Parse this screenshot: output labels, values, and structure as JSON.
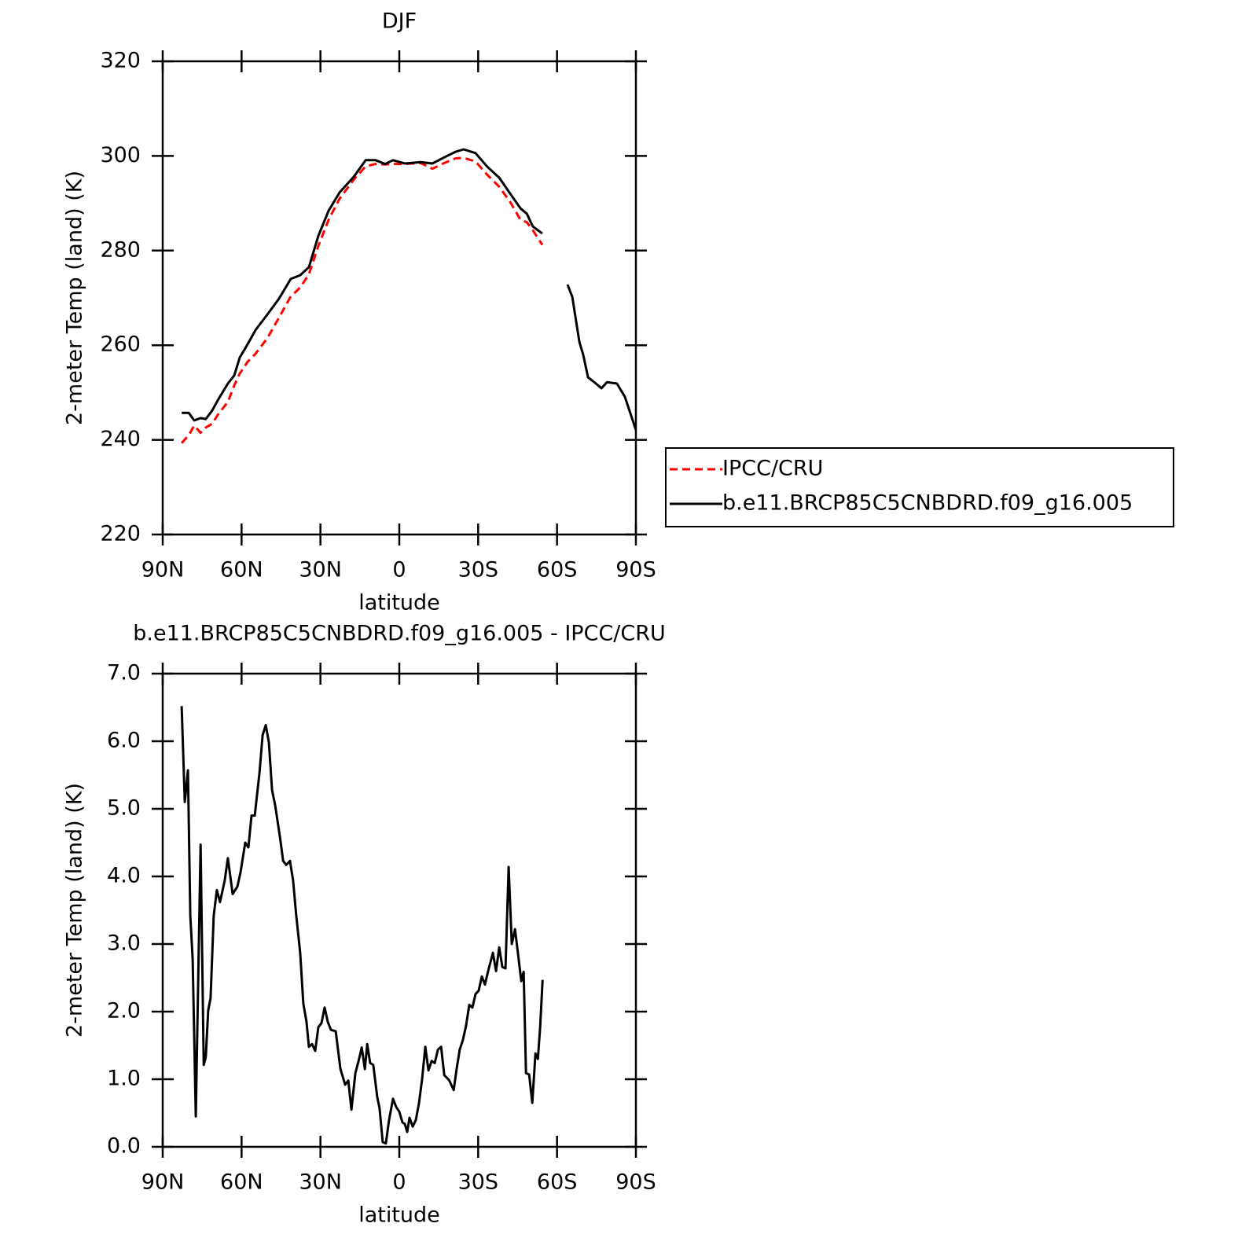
{
  "chart_data": [
    {
      "type": "line",
      "title": "DJF",
      "xlabel": "latitude",
      "ylabel": "2-meter Temp (land) (K)",
      "x": [
        82.8,
        80.1,
        78.0,
        75.6,
        73.6,
        71.2,
        68.8,
        65.2,
        62.8,
        60.7,
        57.7,
        54.7,
        50.2,
        45.8,
        41.3,
        37.7,
        34.4,
        30.8,
        26.9,
        22.7,
        17.3,
        12.8,
        9.0,
        5.4,
        2.4,
        -2.1,
        -8.1,
        -12.6,
        -17.1,
        -21.5,
        -24.5,
        -29.0,
        -33.5,
        -38.0,
        -42.5,
        -46.1,
        -48.5,
        -50.8,
        -54.4,
        -59.0,
        -64.0,
        -65.8,
        -68.5,
        -70.0,
        -71.8,
        -74.8,
        -76.9,
        -79.0,
        -82.8,
        -85.8,
        -90.0
      ],
      "series": [
        {
          "name": "IPCC/CRU",
          "color": "#ff0000",
          "dashed": true,
          "values": [
            239.3,
            241.0,
            243.0,
            241.5,
            242.6,
            243.4,
            245.5,
            248.0,
            251.5,
            254.0,
            256.5,
            258.2,
            261.5,
            265.8,
            270.3,
            272.2,
            275.0,
            281.0,
            286.5,
            291.0,
            295.0,
            297.8,
            298.3,
            298.2,
            298.3,
            298.3,
            298.5,
            297.3,
            298.5,
            299.5,
            299.6,
            298.8,
            296.0,
            293.5,
            290.0,
            286.5,
            286.0,
            284.3,
            281.2,
            null,
            null,
            null,
            null,
            null,
            null,
            null,
            null,
            null,
            null,
            null,
            null
          ]
        },
        {
          "name": "b.e11.BRCP85C5CNBDRD.f09_g16.005",
          "color": "#000000",
          "dashed": false,
          "values": [
            245.7,
            245.7,
            244.1,
            244.6,
            244.4,
            246.2,
            248.6,
            251.9,
            253.6,
            257.4,
            260.2,
            263.2,
            266.5,
            269.8,
            274.0,
            274.8,
            276.5,
            283.1,
            288.4,
            292.3,
            295.6,
            299.1,
            299.1,
            298.3,
            299.1,
            298.4,
            298.7,
            298.4,
            299.7,
            300.9,
            301.4,
            300.6,
            297.7,
            295.4,
            291.8,
            288.9,
            287.8,
            285.1,
            283.6,
            null,
            272.8,
            270.2,
            260.7,
            257.9,
            253.2,
            251.9,
            250.9,
            252.2,
            251.9,
            249.1,
            242.1
          ]
        }
      ],
      "xlim": [
        90,
        -90
      ],
      "xticks": [
        {
          "value": 90,
          "label": "90N"
        },
        {
          "value": 60,
          "label": "60N"
        },
        {
          "value": 30,
          "label": "30N"
        },
        0,
        {
          "value": -30,
          "label": "30S"
        },
        {
          "value": -60,
          "label": "60S"
        },
        {
          "value": -90,
          "label": "90S"
        }
      ],
      "ylim": [
        220,
        320
      ],
      "yticks": [
        220,
        240,
        260,
        280,
        300,
        320
      ],
      "legend": "right"
    },
    {
      "type": "line",
      "title": "b.e11.BRCP85C5CNBDRD.f09_g16.005 - IPCC/CRU",
      "xlabel": "latitude",
      "ylabel": "2-meter Temp (land) (K)",
      "x": [
        82.8,
        81.6,
        80.4,
        79.5,
        78.6,
        77.4,
        75.6,
        74.4,
        73.6,
        72.7,
        71.8,
        70.6,
        69.4,
        68.2,
        66.4,
        65.2,
        63.4,
        61.6,
        60.4,
        58.6,
        57.4,
        56.2,
        55.0,
        53.2,
        52.0,
        50.8,
        49.6,
        48.4,
        47.2,
        45.4,
        44.2,
        43.0,
        41.6,
        40.4,
        39.2,
        37.7,
        36.5,
        35.3,
        34.4,
        33.2,
        32.0,
        30.8,
        29.6,
        28.4,
        27.2,
        26.0,
        24.2,
        22.4,
        20.6,
        19.4,
        18.2,
        16.7,
        15.5,
        14.3,
        13.1,
        12.2,
        11.1,
        9.9,
        8.4,
        7.5,
        6.3,
        5.1,
        3.9,
        2.4,
        1.2,
        0,
        -1.2,
        -2.1,
        -3.0,
        -3.9,
        -5.1,
        -6.3,
        -7.5,
        -8.7,
        -9.9,
        -11.1,
        -12.3,
        -13.5,
        -14.7,
        -15.9,
        -17.1,
        -18.9,
        -20.7,
        -21.8,
        -23.0,
        -24.2,
        -25.4,
        -26.6,
        -27.8,
        -29.0,
        -30.2,
        -31.4,
        -32.6,
        -33.8,
        -35.6,
        -36.8,
        -38.0,
        -39.2,
        -40.4,
        -41.6,
        -42.8,
        -44.0,
        -45.2,
        -46.4,
        -47.3,
        -48.2,
        -49.4,
        -50.6,
        -51.8,
        -52.7,
        -53.6,
        -54.5
      ],
      "series": [
        {
          "color": "#000000",
          "dashed": false,
          "values": [
            6.52,
            5.1,
            5.57,
            3.42,
            2.78,
            0.45,
            4.47,
            1.21,
            1.33,
            2.02,
            2.2,
            3.42,
            3.8,
            3.62,
            3.94,
            4.27,
            3.74,
            3.85,
            4.06,
            4.5,
            4.43,
            4.9,
            4.9,
            5.53,
            6.09,
            6.24,
            5.98,
            5.28,
            5.05,
            4.58,
            4.23,
            4.17,
            4.23,
            3.94,
            3.42,
            2.87,
            2.12,
            1.85,
            1.48,
            1.52,
            1.42,
            1.77,
            1.83,
            2.06,
            1.85,
            1.73,
            1.71,
            1.15,
            0.92,
            0.98,
            0.55,
            1.09,
            1.27,
            1.47,
            1.15,
            1.52,
            1.24,
            1.21,
            0.74,
            0.57,
            0.07,
            0.05,
            0.4,
            0.71,
            0.59,
            0.52,
            0.36,
            0.34,
            0.22,
            0.43,
            0.3,
            0.4,
            0.65,
            1.01,
            1.48,
            1.13,
            1.27,
            1.24,
            1.44,
            1.48,
            1.06,
            0.99,
            0.84,
            1.15,
            1.44,
            1.58,
            1.79,
            2.1,
            2.06,
            2.26,
            2.31,
            2.52,
            2.4,
            2.6,
            2.87,
            2.6,
            2.95,
            2.66,
            2.64,
            4.14,
            3.0,
            3.22,
            2.84,
            2.45,
            2.59,
            1.09,
            1.07,
            0.65,
            1.38,
            1.3,
            1.79,
            2.47
          ]
        }
      ],
      "xlim": [
        90,
        -90
      ],
      "xticks": [
        {
          "value": 90,
          "label": "90N"
        },
        {
          "value": 60,
          "label": "60N"
        },
        {
          "value": 30,
          "label": "30N"
        },
        0,
        {
          "value": -30,
          "label": "30S"
        },
        {
          "value": -60,
          "label": "60S"
        },
        {
          "value": -90,
          "label": "90S"
        }
      ],
      "ylim": [
        0,
        7
      ],
      "yticks": [
        {
          "value": 0,
          "label": "0.0"
        },
        {
          "value": 1,
          "label": "1.0"
        },
        {
          "value": 2,
          "label": "2.0"
        },
        {
          "value": 3,
          "label": "3.0"
        },
        {
          "value": 4,
          "label": "4.0"
        },
        {
          "value": 5,
          "label": "5.0"
        },
        {
          "value": 6,
          "label": "6.0"
        },
        {
          "value": 7,
          "label": "7.0"
        }
      ]
    }
  ]
}
